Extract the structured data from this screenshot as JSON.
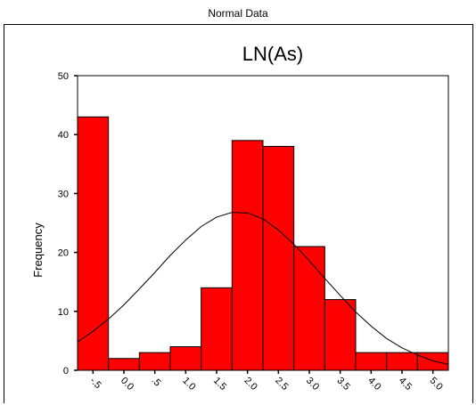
{
  "page": {
    "title": "Normal Data"
  },
  "chart_data": {
    "type": "bar",
    "title": "LN(As)",
    "ylabel": "Frequency",
    "xlabel": "",
    "ylim": [
      0,
      50
    ],
    "yticks": [
      0,
      10,
      20,
      30,
      40,
      50
    ],
    "categories": [
      "-.5",
      "0.0",
      ".5",
      "1.0",
      "1.5",
      "2.0",
      "2.5",
      "3.0",
      "3.5",
      "4.0",
      "4.5",
      "5.0"
    ],
    "values": [
      43,
      2,
      3,
      4,
      14,
      39,
      38,
      21,
      12,
      3,
      3,
      3
    ],
    "bar_color": "#ff0000",
    "grid": false,
    "normal_curve": {
      "x": [
        -0.75,
        -0.5,
        -0.25,
        0.0,
        0.25,
        0.5,
        0.75,
        1.0,
        1.25,
        1.5,
        1.75,
        2.0,
        2.25,
        2.5,
        2.75,
        3.0,
        3.25,
        3.5,
        3.75,
        4.0,
        4.25,
        4.5,
        4.75,
        5.0,
        5.25
      ],
      "y": [
        4.8,
        6.6,
        8.7,
        11.1,
        13.8,
        16.6,
        19.5,
        22.1,
        24.4,
        26.0,
        26.8,
        26.7,
        25.7,
        23.8,
        21.4,
        18.6,
        15.6,
        12.7,
        9.9,
        7.5,
        5.4,
        3.8,
        2.6,
        1.6,
        1.0
      ]
    }
  }
}
